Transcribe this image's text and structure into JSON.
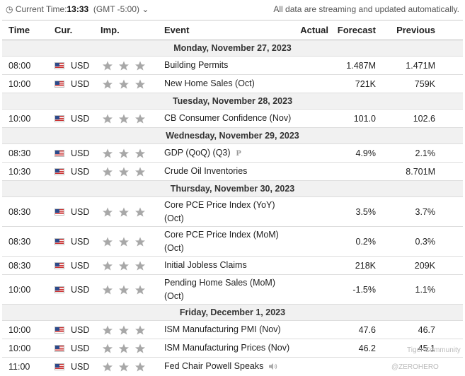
{
  "header": {
    "time_label": "Current Time:",
    "time": "13:33",
    "timezone": "(GMT -5:00)",
    "notice": "All data are streaming and updated automatically."
  },
  "columns": [
    "Time",
    "Cur.",
    "Imp.",
    "Event",
    "Actual",
    "Forecast",
    "Previous"
  ],
  "days": [
    {
      "date": "Monday, November 27, 2023",
      "events": [
        {
          "time": "08:00",
          "currency": "USD",
          "event": [
            "Building Permits"
          ],
          "forecast": "1.487M",
          "previous": "1.471M"
        },
        {
          "time": "10:00",
          "currency": "USD",
          "event": [
            "New Home Sales (Oct)"
          ],
          "forecast": "721K",
          "previous": "759K"
        }
      ]
    },
    {
      "date": "Tuesday, November 28, 2023",
      "events": [
        {
          "time": "10:00",
          "currency": "USD",
          "event": [
            "CB Consumer Confidence (Nov)"
          ],
          "forecast": "101.0",
          "previous": "102.6"
        }
      ]
    },
    {
      "date": "Wednesday, November 29, 2023",
      "events": [
        {
          "time": "08:30",
          "currency": "USD",
          "event": [
            "GDP (QoQ) (Q3)"
          ],
          "flag": "P",
          "forecast": "4.9%",
          "previous": "2.1%"
        },
        {
          "time": "10:30",
          "currency": "USD",
          "event": [
            "Crude Oil Inventories"
          ],
          "previous": "8.701M"
        }
      ]
    },
    {
      "date": "Thursday, November 30, 2023",
      "events": [
        {
          "time": "08:30",
          "currency": "USD",
          "event": [
            "Core PCE Price Index (YoY)",
            "(Oct)"
          ],
          "forecast": "3.5%",
          "previous": "3.7%"
        },
        {
          "time": "08:30",
          "currency": "USD",
          "event": [
            "Core PCE Price Index (MoM)",
            "(Oct)"
          ],
          "forecast": "0.2%",
          "previous": "0.3%"
        },
        {
          "time": "08:30",
          "currency": "USD",
          "event": [
            "Initial Jobless Claims"
          ],
          "forecast": "218K",
          "previous": "209K"
        },
        {
          "time": "10:00",
          "currency": "USD",
          "event": [
            "Pending Home Sales (MoM)",
            "(Oct)"
          ],
          "forecast": "-1.5%",
          "previous": "1.1%"
        }
      ]
    },
    {
      "date": "Friday, December 1, 2023",
      "events": [
        {
          "time": "10:00",
          "currency": "USD",
          "event": [
            "ISM Manufacturing PMI (Nov)"
          ],
          "forecast": "47.6",
          "previous": "46.7"
        },
        {
          "time": "10:00",
          "currency": "USD",
          "event": [
            "ISM Manufacturing Prices (Nov)"
          ],
          "forecast": "46.2",
          "previous": "45.1"
        },
        {
          "time": "11:00",
          "currency": "USD",
          "event": [
            "Fed Chair Powell Speaks"
          ],
          "speech": true
        }
      ]
    }
  ],
  "watermark": {
    "line1": "Tiger Community",
    "line2": "@ZEROHERO"
  }
}
